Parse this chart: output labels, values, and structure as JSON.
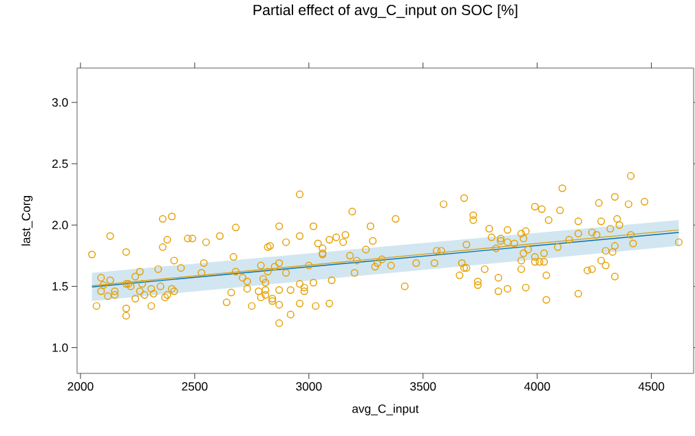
{
  "chart_data": {
    "type": "scatter",
    "title": "Partial effect of avg_C_input on SOC [%]",
    "xlabel": "avg_C_input",
    "ylabel": "last_Corg",
    "xlim": [
      1985,
      4685
    ],
    "ylim": [
      0.79,
      3.28
    ],
    "xticks": [
      2000,
      2500,
      3000,
      3500,
      4000,
      4500
    ],
    "yticks": [
      {
        "value": 1.0,
        "label": "1.0"
      },
      {
        "value": 1.5,
        "label": "1.5"
      },
      {
        "value": 2.0,
        "label": "2.0"
      },
      {
        "value": 2.5,
        "label": "2.5"
      },
      {
        "value": 3.0,
        "label": "3.0"
      }
    ],
    "grid": false,
    "series": [
      {
        "color": "#e69f00",
        "marker": "circle",
        "x": [
          2050,
          2130,
          2200,
          2360,
          2400,
          2380,
          2360,
          2470,
          2490,
          2550,
          2610,
          2680,
          2870,
          2900,
          2820,
          2830,
          2410,
          2440,
          2340,
          2260,
          2240,
          2090,
          2130,
          2100,
          2090,
          2150,
          2150,
          2120,
          2200,
          2210,
          2220,
          2270,
          2260,
          2280,
          2240,
          2310,
          2320,
          2350,
          2400,
          2410,
          2380,
          2370,
          2070,
          2200,
          2200,
          2310,
          2530,
          2540,
          2670,
          2680,
          2710,
          2730,
          2730,
          2660,
          2640,
          2750,
          2780,
          2790,
          2820,
          2850,
          2870,
          2900,
          2800,
          2810,
          2810,
          2790,
          2810,
          2840,
          2840,
          2870,
          2870,
          2870,
          2960,
          3020,
          2960,
          3040,
          3090,
          3120,
          3160,
          3150,
          3190,
          3270,
          3280,
          3380,
          3250,
          3060,
          3060,
          3060,
          3180,
          3210,
          3000,
          3200,
          3320,
          3300,
          3290,
          3360,
          3470,
          3550,
          3560,
          3580,
          3590,
          3680,
          3720,
          3720,
          3690,
          3670,
          3680,
          3690,
          3660,
          3740,
          3740,
          3420,
          2960,
          2980,
          2980,
          3020,
          3100,
          2920,
          2960,
          3030,
          3090,
          2920,
          4410,
          4110,
          3990,
          4020,
          4100,
          4270,
          4340,
          4400,
          4470,
          4050,
          4180,
          4280,
          4350,
          4360,
          4320,
          3790,
          3870,
          3800,
          3840,
          3840,
          3870,
          3900,
          3930,
          3950,
          3940,
          4180,
          4240,
          4260,
          4410,
          4140,
          4090,
          3820,
          3960,
          3940,
          4030,
          4340,
          4420,
          4620,
          4300,
          4330,
          3990,
          3930,
          3990,
          4010,
          4030,
          4280,
          4300,
          3930,
          4220,
          4240,
          4340,
          4040,
          3770,
          3830,
          3870,
          3950,
          3830,
          4180,
          4040
        ],
        "values": [
          1.76,
          1.91,
          1.78,
          2.05,
          2.07,
          1.88,
          1.82,
          1.89,
          1.89,
          1.86,
          1.91,
          1.98,
          1.99,
          1.86,
          1.82,
          1.83,
          1.71,
          1.65,
          1.64,
          1.62,
          1.58,
          1.57,
          1.55,
          1.51,
          1.46,
          1.46,
          1.43,
          1.42,
          1.52,
          1.52,
          1.5,
          1.52,
          1.46,
          1.43,
          1.4,
          1.48,
          1.44,
          1.5,
          1.48,
          1.46,
          1.43,
          1.41,
          1.34,
          1.32,
          1.26,
          1.34,
          1.61,
          1.69,
          1.74,
          1.62,
          1.57,
          1.54,
          1.48,
          1.45,
          1.37,
          1.34,
          1.46,
          1.67,
          1.62,
          1.66,
          1.69,
          1.61,
          1.56,
          1.53,
          1.47,
          1.41,
          1.43,
          1.4,
          1.38,
          1.47,
          1.35,
          1.2,
          2.25,
          1.99,
          1.91,
          1.85,
          1.88,
          1.9,
          1.92,
          1.86,
          2.11,
          1.99,
          1.87,
          2.05,
          1.8,
          1.81,
          1.77,
          1.76,
          1.75,
          1.71,
          1.67,
          1.61,
          1.72,
          1.69,
          1.66,
          1.67,
          1.69,
          1.69,
          1.79,
          1.79,
          2.17,
          2.22,
          2.08,
          2.04,
          1.84,
          1.69,
          1.65,
          1.65,
          1.59,
          1.54,
          1.51,
          1.5,
          1.52,
          1.49,
          1.46,
          1.53,
          1.55,
          1.47,
          1.36,
          1.34,
          1.36,
          1.27,
          2.4,
          2.3,
          2.15,
          2.13,
          2.12,
          2.18,
          2.23,
          2.17,
          2.19,
          2.04,
          2.03,
          2.03,
          2.05,
          2.0,
          1.97,
          1.97,
          1.96,
          1.9,
          1.89,
          1.87,
          1.86,
          1.85,
          1.93,
          1.95,
          1.89,
          1.93,
          1.94,
          1.92,
          1.92,
          1.88,
          1.82,
          1.81,
          1.8,
          1.77,
          1.77,
          1.83,
          1.85,
          1.86,
          1.79,
          1.78,
          1.74,
          1.71,
          1.7,
          1.7,
          1.7,
          1.71,
          1.67,
          1.64,
          1.63,
          1.64,
          1.58,
          1.59,
          1.64,
          1.57,
          1.48,
          1.49,
          1.46,
          1.44,
          1.39
        ]
      },
      {
        "type": "line",
        "color": "#0072b2",
        "x": [
          2050,
          4620
        ],
        "values": [
          1.495,
          1.94
        ],
        "lower": [
          1.38,
          1.83
        ],
        "upper": [
          1.61,
          2.04
        ]
      },
      {
        "type": "line",
        "color": "#d9a21b",
        "x": [
          2050,
          4620
        ],
        "values": [
          1.505,
          1.96
        ]
      }
    ]
  }
}
